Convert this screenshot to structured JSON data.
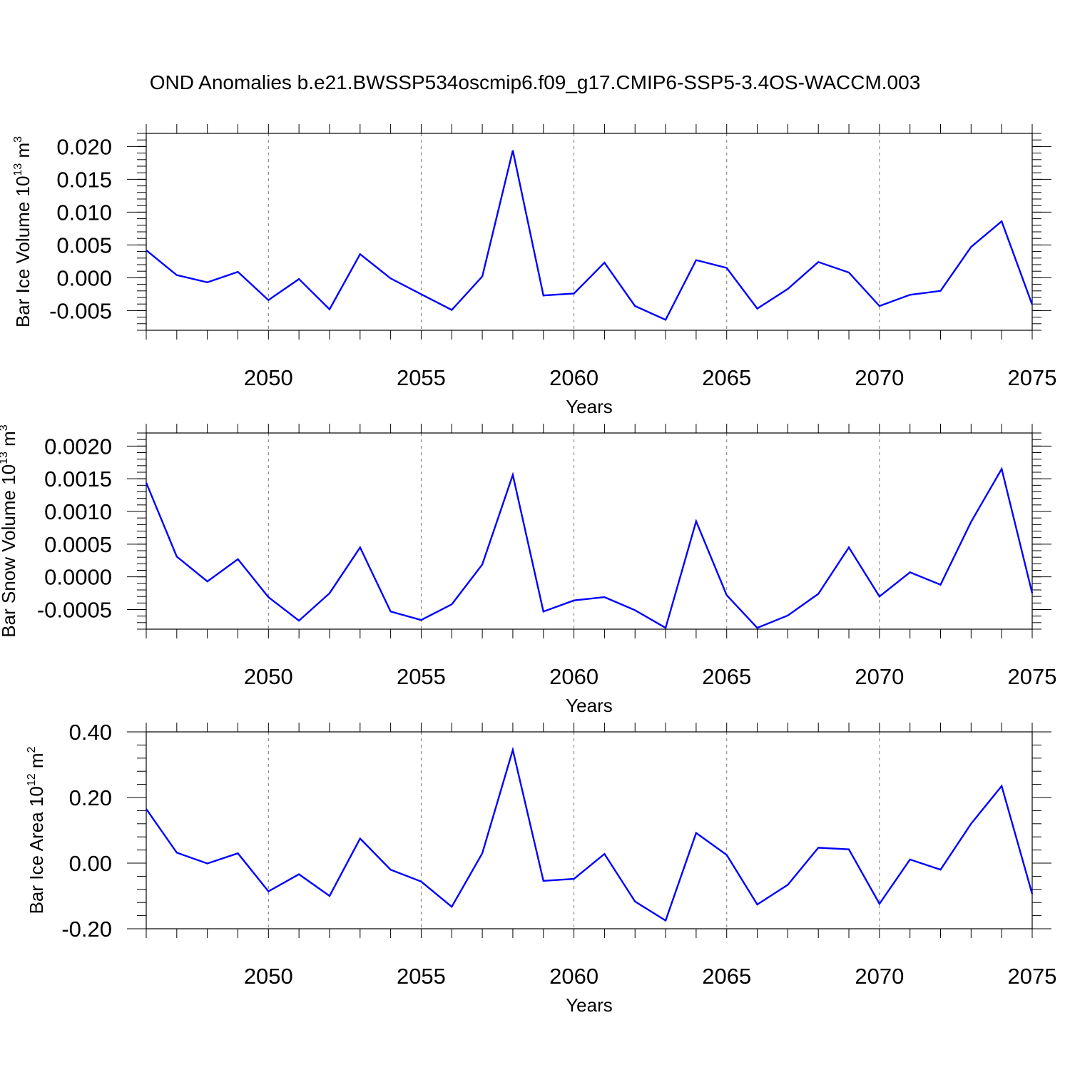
{
  "title": "OND Anomalies b.e21.BWSSP534oscmip6.f09_g17.CMIP6-SSP5-3.4OS-WACCM.003",
  "colors": {
    "line": "#0000ff",
    "axis": "#000000",
    "grid": "#777777"
  },
  "chart_data": [
    {
      "type": "line",
      "ylabel": {
        "main": "Bar Ice Volume 10",
        "exp": "13",
        "unit": " m",
        "unit_exp": "3"
      },
      "xlabel": "Years",
      "xlim": [
        2046,
        2075
      ],
      "ylim": [
        -0.008,
        0.022
      ],
      "xticks": [
        2050,
        2055,
        2060,
        2065,
        2070,
        2075
      ],
      "yticks": [
        -0.005,
        0.0,
        0.005,
        0.01,
        0.015,
        0.02
      ],
      "ytick_labels": [
        "-0.005",
        "0.000",
        "0.005",
        "0.010",
        "0.015",
        "0.020"
      ],
      "xtick_labels": [
        "2050",
        "2055",
        "2060",
        "2065",
        "2070",
        "2075"
      ],
      "series": [
        {
          "name": "Bar Ice Volume",
          "x": [
            2046,
            2047,
            2048,
            2049,
            2050,
            2051,
            2052,
            2053,
            2054,
            2055,
            2056,
            2057,
            2058,
            2059,
            2060,
            2061,
            2062,
            2063,
            2064,
            2065,
            2066,
            2067,
            2068,
            2069,
            2070,
            2071,
            2072,
            2073,
            2074,
            2075
          ],
          "values": [
            0.0042,
            0.0004,
            -0.0007,
            0.0009,
            -0.0034,
            -0.0002,
            -0.0048,
            0.0036,
            -0.0001,
            -0.0025,
            -0.0049,
            0.0002,
            0.0194,
            -0.0027,
            -0.0024,
            0.0023,
            -0.0043,
            -0.0064,
            0.0027,
            0.0015,
            -0.0047,
            -0.0017,
            0.0024,
            0.0008,
            -0.0043,
            -0.0026,
            -0.002,
            0.0047,
            0.0086,
            -0.0041
          ]
        }
      ]
    },
    {
      "type": "line",
      "ylabel": {
        "main": "Bar Snow Volume 10",
        "exp": "13",
        "unit": " m",
        "unit_exp": "3"
      },
      "xlabel": "Years",
      "xlim": [
        2046,
        2075
      ],
      "ylim": [
        -0.0008,
        0.0022
      ],
      "xticks": [
        2050,
        2055,
        2060,
        2065,
        2070,
        2075
      ],
      "yticks": [
        -0.0005,
        0.0,
        0.0005,
        0.001,
        0.0015,
        0.002
      ],
      "ytick_labels": [
        "-0.0005",
        "0.0000",
        "0.0005",
        "0.0010",
        "0.0015",
        "0.0020"
      ],
      "xtick_labels": [
        "2050",
        "2055",
        "2060",
        "2065",
        "2070",
        "2075"
      ],
      "series": [
        {
          "name": "Bar Snow Volume",
          "x": [
            2046,
            2047,
            2048,
            2049,
            2050,
            2051,
            2052,
            2053,
            2054,
            2055,
            2056,
            2057,
            2058,
            2059,
            2060,
            2061,
            2062,
            2063,
            2064,
            2065,
            2066,
            2067,
            2068,
            2069,
            2070,
            2071,
            2072,
            2073,
            2074,
            2075
          ],
          "values": [
            0.00144,
            0.00031,
            -7e-05,
            0.00027,
            -0.00031,
            -0.00067,
            -0.00025,
            0.00045,
            -0.00053,
            -0.00066,
            -0.00042,
            0.00019,
            0.00156,
            -0.00053,
            -0.00036,
            -0.00031,
            -0.00051,
            -0.00078,
            0.00085,
            -0.00028,
            -0.00078,
            -0.00059,
            -0.00026,
            0.00045,
            -0.0003,
            7e-05,
            -0.00012,
            0.00084,
            0.00165,
            -0.00025
          ]
        }
      ]
    },
    {
      "type": "line",
      "ylabel": {
        "main": "Bar Ice Area 10",
        "exp": "12",
        "unit": " m",
        "unit_exp": "2"
      },
      "xlabel": "Years",
      "xlim": [
        2046,
        2075
      ],
      "ylim": [
        -0.2,
        0.4
      ],
      "xticks": [
        2050,
        2055,
        2060,
        2065,
        2070,
        2075
      ],
      "yticks": [
        -0.2,
        0.0,
        0.2,
        0.4
      ],
      "ytick_labels": [
        "-0.20",
        "0.00",
        "0.20",
        "0.40"
      ],
      "xtick_labels": [
        "2050",
        "2055",
        "2060",
        "2065",
        "2070",
        "2075"
      ],
      "series": [
        {
          "name": "Bar Ice Area",
          "x": [
            2046,
            2047,
            2048,
            2049,
            2050,
            2051,
            2052,
            2053,
            2054,
            2055,
            2056,
            2057,
            2058,
            2059,
            2060,
            2061,
            2062,
            2063,
            2064,
            2065,
            2066,
            2067,
            2068,
            2069,
            2070,
            2071,
            2072,
            2073,
            2074,
            2075
          ],
          "values": [
            0.165,
            0.032,
            -0.001,
            0.03,
            -0.086,
            -0.034,
            -0.1,
            0.075,
            -0.02,
            -0.056,
            -0.133,
            0.03,
            0.345,
            -0.054,
            -0.048,
            0.028,
            -0.117,
            -0.175,
            0.092,
            0.025,
            -0.126,
            -0.066,
            0.047,
            0.042,
            -0.124,
            0.011,
            -0.02,
            0.12,
            0.235,
            -0.094
          ]
        }
      ]
    }
  ]
}
